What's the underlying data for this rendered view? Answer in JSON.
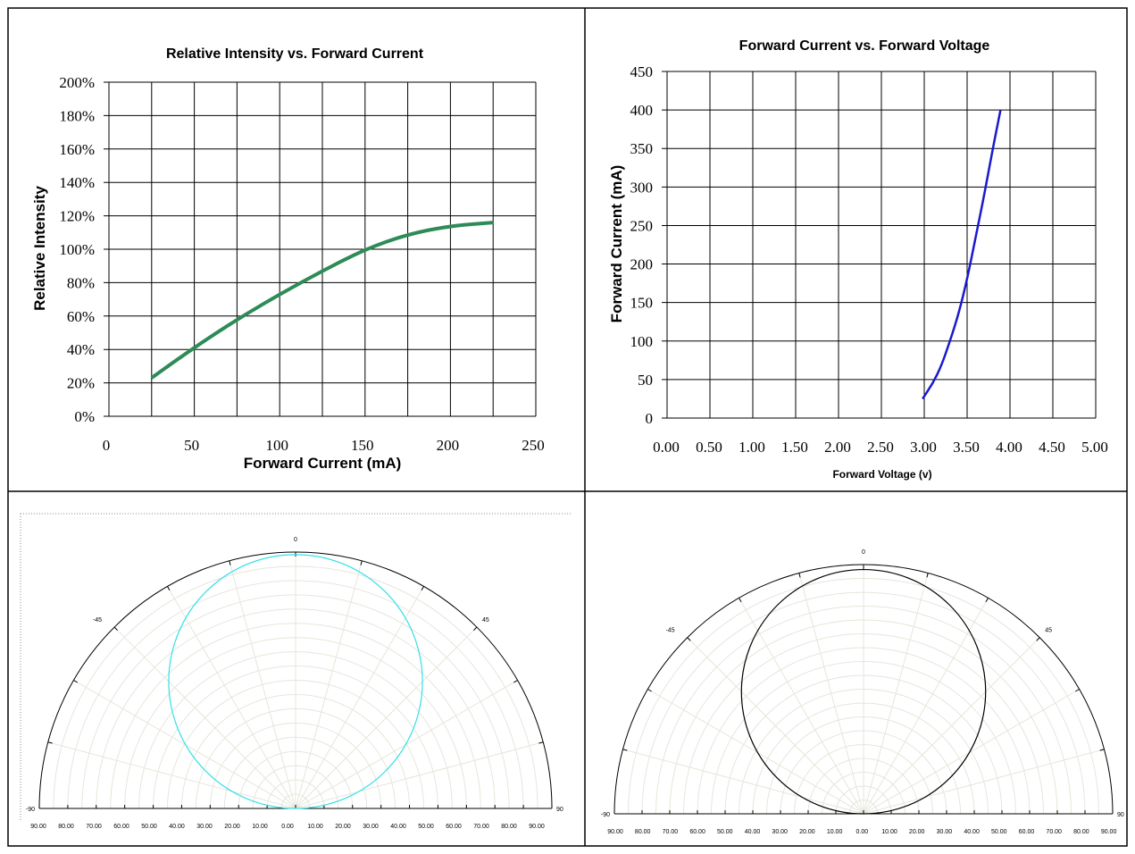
{
  "chart_data": [
    {
      "type": "line",
      "title": "Relative Intensity vs. Forward Current",
      "xlabel": "Forward Current (mA)",
      "ylabel": "Relative Intensity",
      "xlim": [
        0,
        250
      ],
      "ylim": [
        0,
        200
      ],
      "x_ticks": [
        "0",
        "50",
        "100",
        "150",
        "200",
        "250"
      ],
      "y_ticks": [
        "0%",
        "20%",
        "40%",
        "60%",
        "80%",
        "100%",
        "120%",
        "140%",
        "160%",
        "180%",
        "200%"
      ],
      "grid": true,
      "color": "#2e8b57",
      "x": [
        25,
        40,
        60,
        80,
        100,
        125,
        150,
        175,
        200,
        225
      ],
      "y": [
        23,
        34,
        48,
        61,
        73,
        87,
        100,
        109,
        114,
        116
      ]
    },
    {
      "type": "line",
      "title": "Forward Current vs. Forward Voltage",
      "xlabel": "Forward Voltage (v)",
      "ylabel": "Forward Current (mA)",
      "xlim": [
        0,
        5
      ],
      "ylim": [
        0,
        450
      ],
      "x_ticks": [
        "0.00",
        "0.50",
        "1.00",
        "1.50",
        "2.00",
        "2.50",
        "3.00",
        "3.50",
        "4.00",
        "4.50",
        "5.00"
      ],
      "y_ticks": [
        "0",
        "50",
        "100",
        "150",
        "200",
        "250",
        "300",
        "350",
        "400",
        "450"
      ],
      "grid": true,
      "color": "#1a1acd",
      "x": [
        2.98,
        3.1,
        3.2,
        3.3,
        3.4,
        3.5,
        3.6,
        3.7,
        3.8,
        3.89
      ],
      "y": [
        25,
        45,
        68,
        100,
        135,
        180,
        235,
        290,
        350,
        400
      ]
    },
    {
      "type": "polar",
      "angle_labels": [
        "0",
        "-45",
        "45",
        "-90",
        "90"
      ],
      "radial_ticks": [
        "90.00",
        "80.00",
        "70.00",
        "60.00",
        "50.00",
        "40.00",
        "30.00",
        "20.00",
        "10.00",
        "0.00",
        "10.00",
        "20.00",
        "30.00",
        "40.00",
        "50.00",
        "60.00",
        "70.00",
        "80.00",
        "90.00"
      ],
      "color": "#33e0e8",
      "pattern": "circle",
      "relative_diameter": 0.99
    },
    {
      "type": "polar",
      "angle_labels": [
        "0",
        "-45",
        "45",
        "-90",
        "90"
      ],
      "radial_ticks": [
        "90.00",
        "80.00",
        "70.00",
        "60.00",
        "50.00",
        "40.00",
        "30.00",
        "20.00",
        "10.00",
        "0.00",
        "10.00",
        "20.00",
        "30.00",
        "40.00",
        "50.00",
        "60.00",
        "70.00",
        "80.00",
        "90.00"
      ],
      "color": "#000000",
      "pattern": "circle",
      "relative_diameter": 0.98
    }
  ]
}
